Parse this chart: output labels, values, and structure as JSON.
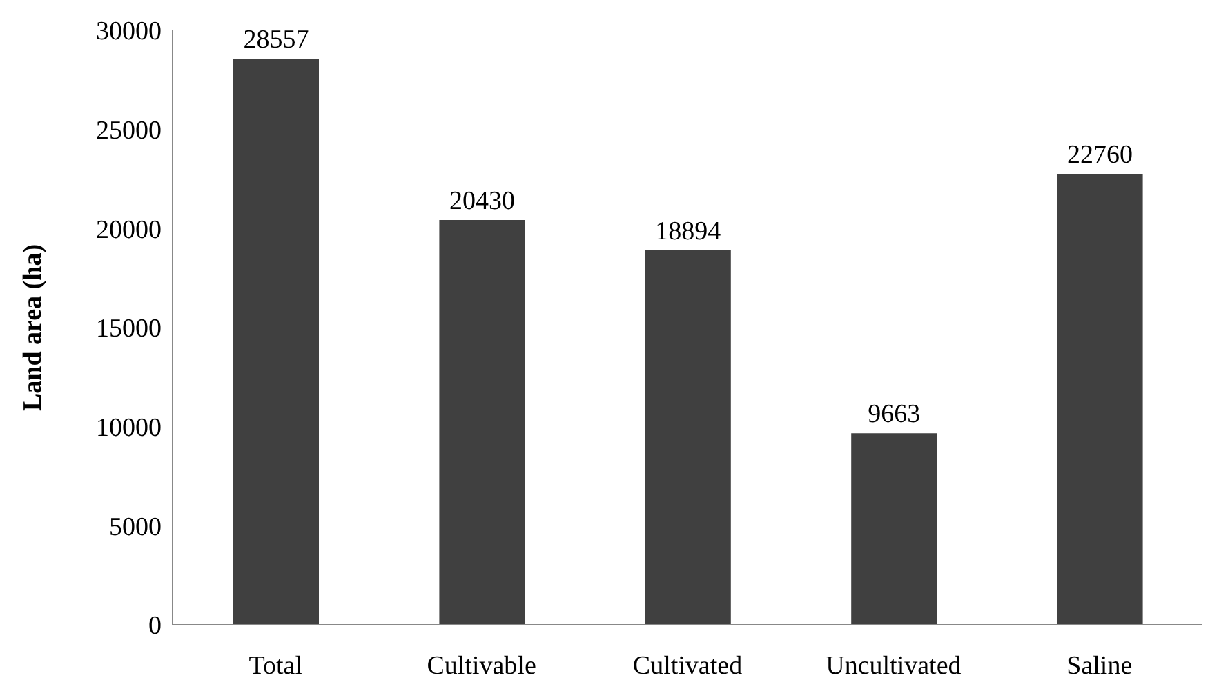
{
  "chart_data": {
    "type": "bar",
    "ylabel": "Land area (ha)",
    "categories": [
      "Total",
      "Cultivable",
      "Cultivated",
      "Uncultivated",
      "Saline"
    ],
    "values": [
      28557,
      20430,
      18894,
      9663,
      22760
    ],
    "color": "#404040",
    "ylim": [
      0,
      30000
    ],
    "yticks": [
      0,
      5000,
      10000,
      15000,
      20000,
      25000,
      30000
    ],
    "grid": false,
    "data_labels": true
  }
}
